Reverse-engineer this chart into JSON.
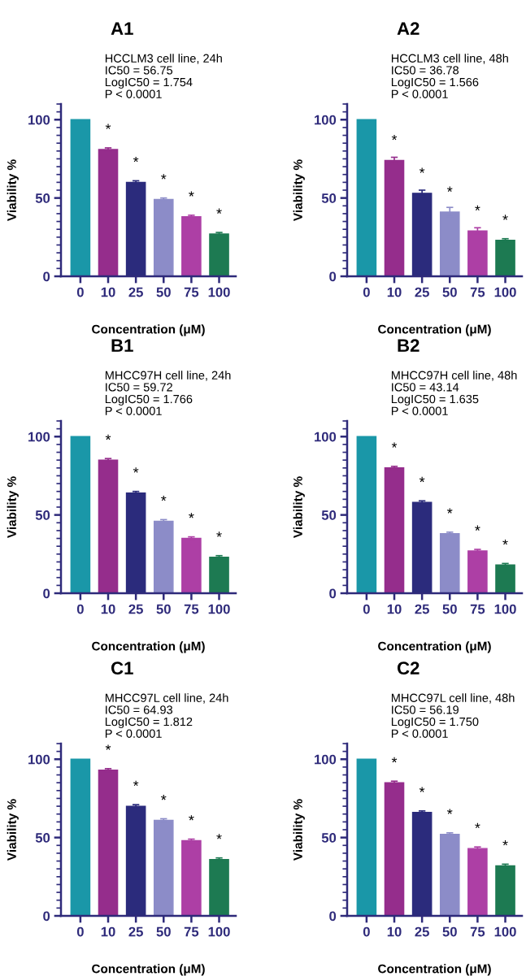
{
  "chart_data": [
    {
      "type": "bar",
      "title": "A1",
      "subtitle": "HCCLM3 cell line, 24h\nIC50 = 56.75\nLogIC50 = 1.754\nP < 0.0001",
      "xlabel": "Concentration (μM)",
      "ylabel": "Viability %",
      "categories": [
        "0",
        "10",
        "25",
        "50",
        "75",
        "100"
      ],
      "values": [
        100,
        81,
        60,
        49,
        38,
        27
      ],
      "errors": [
        null,
        1,
        1,
        1,
        1,
        1
      ],
      "colors": [
        "#1a97a8",
        "#952d8c",
        "#2b2b7c",
        "#8c8cc8",
        "#ad3fa5",
        "#1d7a52"
      ],
      "ylim": [
        0,
        110
      ],
      "yticks": [
        0,
        50,
        100
      ],
      "annotations": [
        {
          "text": "*",
          "x": "10",
          "y": 81
        },
        {
          "text": "*",
          "x": "25",
          "y": 60
        },
        {
          "text": "*",
          "x": "50",
          "y": 49
        },
        {
          "text": "*",
          "x": "75",
          "y": 38
        },
        {
          "text": "*",
          "x": "100",
          "y": 27
        }
      ]
    },
    {
      "type": "bar",
      "title": "A2",
      "subtitle": "HCCLM3 cell line, 48h\nIC50 = 36.78\nLogIC50 = 1.566\nP < 0.0001",
      "xlabel": "Concentration (μM)",
      "ylabel": "Viability %",
      "categories": [
        "0",
        "10",
        "25",
        "50",
        "75",
        "100"
      ],
      "values": [
        100,
        74,
        53,
        41,
        29,
        23
      ],
      "errors": [
        null,
        2,
        2,
        3,
        2,
        1
      ],
      "colors": [
        "#1a97a8",
        "#952d8c",
        "#2b2b7c",
        "#8c8cc8",
        "#ad3fa5",
        "#1d7a52"
      ],
      "ylim": [
        0,
        110
      ],
      "yticks": [
        0,
        50,
        100
      ],
      "annotations": [
        {
          "text": "*",
          "x": "10",
          "y": 74
        },
        {
          "text": "*",
          "x": "25",
          "y": 53
        },
        {
          "text": "*",
          "x": "50",
          "y": 41
        },
        {
          "text": "*",
          "x": "75",
          "y": 29
        },
        {
          "text": "*",
          "x": "100",
          "y": 23
        }
      ]
    },
    {
      "type": "bar",
      "title": "B1",
      "subtitle": "MHCC97H cell line, 24h\nIC50 = 59.72\nLogIC50 = 1.766\nP < 0.0001",
      "xlabel": "Concentration (μM)",
      "ylabel": "Viability %",
      "categories": [
        "0",
        "10",
        "25",
        "50",
        "75",
        "100"
      ],
      "values": [
        100,
        85,
        64,
        46,
        35,
        23
      ],
      "errors": [
        null,
        1,
        1,
        1,
        1,
        1
      ],
      "colors": [
        "#1a97a8",
        "#952d8c",
        "#2b2b7c",
        "#8c8cc8",
        "#ad3fa5",
        "#1d7a52"
      ],
      "ylim": [
        0,
        110
      ],
      "yticks": [
        0,
        50,
        100
      ],
      "annotations": [
        {
          "text": "*",
          "x": "10",
          "y": 85
        },
        {
          "text": "*",
          "x": "25",
          "y": 64
        },
        {
          "text": "*",
          "x": "50",
          "y": 46
        },
        {
          "text": "*",
          "x": "75",
          "y": 35
        },
        {
          "text": "*",
          "x": "100",
          "y": 23
        }
      ]
    },
    {
      "type": "bar",
      "title": "B2",
      "subtitle": "MHCC97H cell line, 48h\nIC50 = 43.14\nLogIC50 = 1.635\nP < 0.0001",
      "xlabel": "Concentration (μM)",
      "ylabel": "Viability %",
      "categories": [
        "0",
        "10",
        "25",
        "50",
        "75",
        "100"
      ],
      "values": [
        100,
        80,
        58,
        38,
        27,
        18
      ],
      "errors": [
        null,
        1,
        1,
        1,
        1,
        1
      ],
      "colors": [
        "#1a97a8",
        "#952d8c",
        "#2b2b7c",
        "#8c8cc8",
        "#ad3fa5",
        "#1d7a52"
      ],
      "ylim": [
        0,
        110
      ],
      "yticks": [
        0,
        50,
        100
      ],
      "annotations": [
        {
          "text": "*",
          "x": "10",
          "y": 80
        },
        {
          "text": "*",
          "x": "25",
          "y": 58
        },
        {
          "text": "*",
          "x": "50",
          "y": 38
        },
        {
          "text": "*",
          "x": "75",
          "y": 27
        },
        {
          "text": "*",
          "x": "100",
          "y": 18
        }
      ]
    },
    {
      "type": "bar",
      "title": "C1",
      "subtitle": "MHCC97L cell line, 24h\nIC50 = 64.93\nLogIC50 = 1.812\nP < 0.0001",
      "xlabel": "Concentration (μM)",
      "ylabel": "Viability %",
      "categories": [
        "0",
        "10",
        "25",
        "50",
        "75",
        "100"
      ],
      "values": [
        100,
        93,
        70,
        61,
        48,
        36
      ],
      "errors": [
        null,
        1,
        1,
        1,
        1,
        1
      ],
      "colors": [
        "#1a97a8",
        "#952d8c",
        "#2b2b7c",
        "#8c8cc8",
        "#ad3fa5",
        "#1d7a52"
      ],
      "ylim": [
        0,
        110
      ],
      "yticks": [
        0,
        50,
        100
      ],
      "annotations": [
        {
          "text": "*",
          "x": "10",
          "y": 93
        },
        {
          "text": "*",
          "x": "25",
          "y": 70
        },
        {
          "text": "*",
          "x": "50",
          "y": 61
        },
        {
          "text": "*",
          "x": "75",
          "y": 48
        },
        {
          "text": "*",
          "x": "100",
          "y": 36
        }
      ]
    },
    {
      "type": "bar",
      "title": "C2",
      "subtitle": "MHCC97L cell line, 48h\nIC50 = 56.19\nLogIC50 = 1.750\nP < 0.0001",
      "xlabel": "Concentration (μM)",
      "ylabel": "Viability %",
      "categories": [
        "0",
        "10",
        "25",
        "50",
        "75",
        "100"
      ],
      "values": [
        100,
        85,
        66,
        52,
        43,
        32
      ],
      "errors": [
        null,
        1,
        1,
        1,
        1,
        1
      ],
      "colors": [
        "#1a97a8",
        "#952d8c",
        "#2b2b7c",
        "#8c8cc8",
        "#ad3fa5",
        "#1d7a52"
      ],
      "ylim": [
        0,
        110
      ],
      "yticks": [
        0,
        50,
        100
      ],
      "annotations": [
        {
          "text": "*",
          "x": "10",
          "y": 85
        },
        {
          "text": "*",
          "x": "25",
          "y": 66
        },
        {
          "text": "*",
          "x": "50",
          "y": 52
        },
        {
          "text": "*",
          "x": "75",
          "y": 43
        },
        {
          "text": "*",
          "x": "100",
          "y": 32
        }
      ]
    }
  ]
}
